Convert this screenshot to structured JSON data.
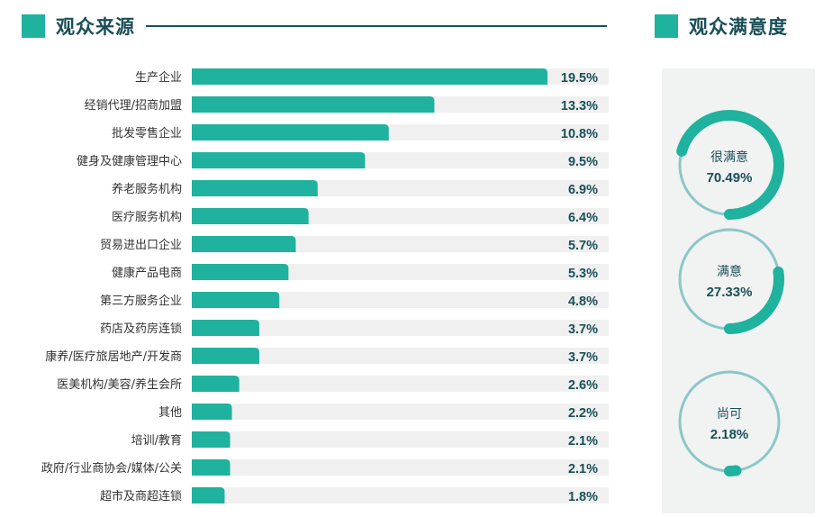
{
  "left_section": {
    "title": "观众来源"
  },
  "right_section": {
    "title": "观众满意度"
  },
  "colors": {
    "accent": "#1fb29e",
    "dark": "#1a4f57",
    "track": "#f0f0f0",
    "ring": "#8cc7c8"
  },
  "chart_data": [
    {
      "type": "bar",
      "orientation": "horizontal",
      "title": "观众来源",
      "categories": [
        "生产企业",
        "经销代理/招商加盟",
        "批发零售企业",
        "健身及健康管理中心",
        "养老服务机构",
        "医疗服务机构",
        "贸易进出口企业",
        "健康产品电商",
        "第三方服务企业",
        "药店及药房连锁",
        "康养/医疗旅居地产/开发商",
        "医美机构/美容/养生会所",
        "其他",
        "培训/教育",
        "政府/行业商协会/媒体/公关",
        "超市及商超连锁"
      ],
      "values": [
        19.5,
        13.3,
        10.8,
        9.5,
        6.9,
        6.4,
        5.7,
        5.3,
        4.8,
        3.7,
        3.7,
        2.6,
        2.2,
        2.1,
        2.1,
        1.8
      ],
      "value_labels": [
        "19.5%",
        "13.3%",
        "10.8%",
        "9.5%",
        "6.9%",
        "6.4%",
        "5.7%",
        "5.3%",
        "4.8%",
        "3.7%",
        "3.7%",
        "2.6%",
        "2.2%",
        "2.1%",
        "2.1%",
        "1.8%"
      ],
      "xlim": [
        0,
        21.4
      ]
    },
    {
      "type": "pie",
      "style": "donut",
      "title": "观众满意度",
      "categories": [
        "很满意",
        "满意",
        "尚可"
      ],
      "values": [
        70.49,
        27.33,
        2.18
      ],
      "value_labels": [
        "70.49%",
        "27.33%",
        "2.18%"
      ]
    }
  ]
}
